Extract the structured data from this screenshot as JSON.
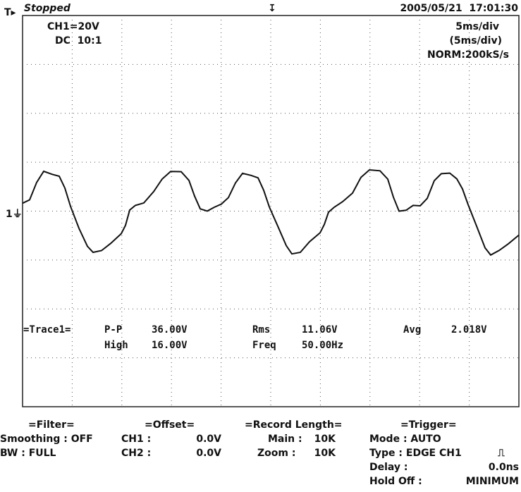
{
  "header": {
    "status": "Stopped",
    "channel": "CH1=20V",
    "coupling": "DC  10:1",
    "timestamp": "2005/05/21  17:01:30",
    "timebase": "5ms/div",
    "timebase_zoom": "(5ms/div)",
    "sample_rate": "NORM:200kS/s"
  },
  "measurements": {
    "trace": "=Trace1=",
    "items": [
      {
        "label": "P-P",
        "value": "36.00V"
      },
      {
        "label": "Rms",
        "value": "11.06V"
      },
      {
        "label": "Avg",
        "value": "2.018V"
      },
      {
        "label": "High",
        "value": "16.00V"
      },
      {
        "label": "Freq",
        "value": "50.00Hz"
      }
    ]
  },
  "settings": {
    "filter": {
      "title": "=Filter=",
      "rows": [
        "Smoothing : OFF",
        "BW : FULL"
      ]
    },
    "offset": {
      "title": "=Offset=",
      "rows": [
        [
          "CH1 :",
          "0.0V"
        ],
        [
          "CH2 :",
          "0.0V"
        ]
      ]
    },
    "record_length": {
      "title": "=Record Length=",
      "rows": [
        [
          "Main :",
          "10K"
        ],
        [
          "Zoom :",
          "10K"
        ]
      ]
    },
    "trigger": {
      "title": "=Trigger=",
      "rows": [
        [
          "Mode : AUTO",
          ""
        ],
        [
          "Type : EDGE CH1",
          ""
        ],
        [
          "Delay :",
          "0.0ns"
        ],
        [
          "Hold Off :",
          "MINIMUM"
        ]
      ]
    }
  }
}
